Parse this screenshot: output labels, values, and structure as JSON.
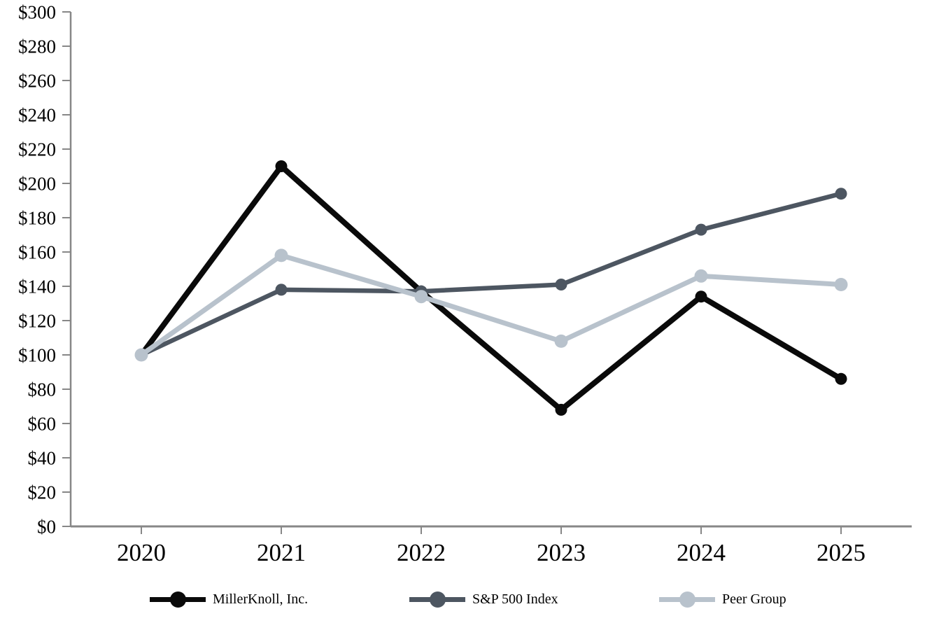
{
  "chart_data": {
    "type": "line",
    "title": "",
    "xlabel": "",
    "ylabel": "",
    "categories": [
      "2020",
      "2021",
      "2022",
      "2023",
      "2024",
      "2025"
    ],
    "series": [
      {
        "name": "MillerKnoll, Inc.",
        "values": [
          100,
          210,
          137,
          68,
          134,
          86
        ],
        "color": "#0a0a0a",
        "line_width": 8,
        "marker_radius": 8.5
      },
      {
        "name": "S&P 500 Index",
        "values": [
          100,
          138,
          137,
          141,
          173,
          194
        ],
        "color": "#4d5661",
        "line_width": 6.5,
        "marker_radius": 8.5
      },
      {
        "name": "Peer Group",
        "values": [
          100,
          158,
          134,
          108,
          146,
          141
        ],
        "color": "#b8c2cc",
        "line_width": 7,
        "marker_radius": 9.5
      }
    ],
    "ylim": [
      0,
      300
    ],
    "ytick_step": 20,
    "ytick_labels": [
      "$0",
      "$20",
      "$40",
      "$60",
      "$80",
      "$100",
      "$120",
      "$140",
      "$160",
      "$180",
      "$200",
      "$220",
      "$240",
      "$260",
      "$280",
      "$300"
    ],
    "currency_prefix": "$",
    "grid": false,
    "legend_position": "bottom",
    "axis_color": "#878787",
    "label_color": "#000000"
  }
}
